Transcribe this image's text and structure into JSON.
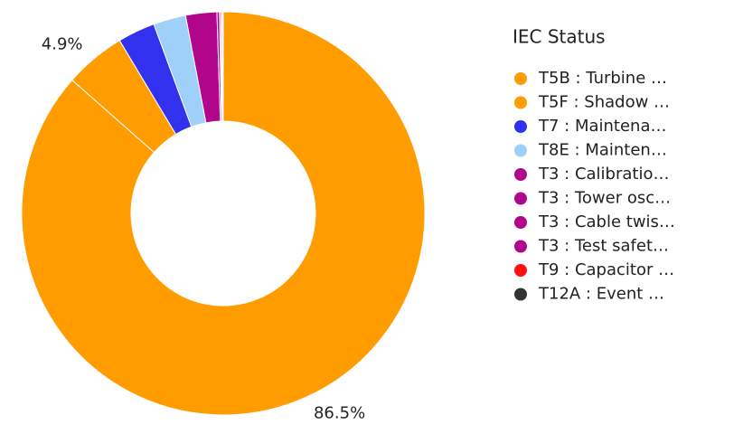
{
  "chart_data": {
    "type": "donut",
    "legend_title": "IEC Status",
    "categories": [
      "T5B : Turbine …",
      "T5F : Shadow …",
      "T7 : Maintena…",
      "T8E : Mainten…",
      "T3 : Calibratio…",
      "T3 : Tower osc…",
      "T3 : Cable twis…",
      "T3 : Test safet…",
      "T9 : Capacitor …",
      "T12A : Event …"
    ],
    "values": [
      86.5,
      4.9,
      3.0,
      2.6,
      2.5,
      0.2,
      0.1,
      0.1,
      0.05,
      0.05
    ],
    "value_labels": [
      "86.5%",
      "4.9%",
      null,
      null,
      null,
      null,
      null,
      null,
      null,
      null
    ],
    "colors": [
      "#FF9C00",
      "#FF9C00",
      "#3232EE",
      "#9ED0FA",
      "#B1068C",
      "#B1068C",
      "#B1068C",
      "#B1068C",
      "#FF1010",
      "#333333"
    ],
    "legend": "right"
  }
}
